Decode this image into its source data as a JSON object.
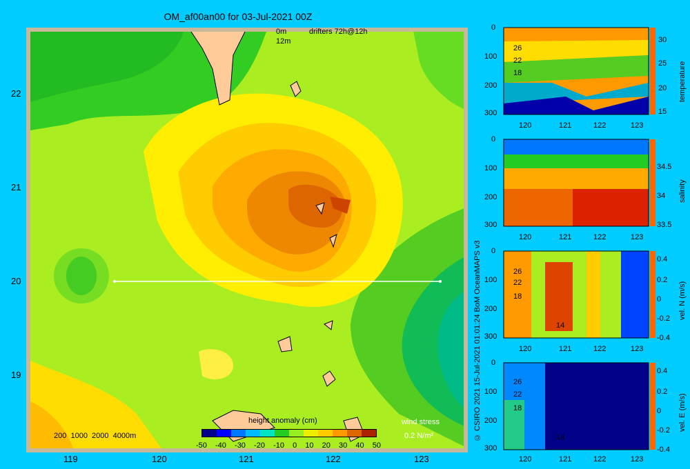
{
  "title": "OM_af00an00 for 03-Jul-2021 00Z",
  "legend": {
    "depth_0m": "0m",
    "depth_12m": "12m",
    "drifters": "drifters 72h@12h"
  },
  "map": {
    "x_ticks": [
      "119",
      "120",
      "121",
      "122",
      "123"
    ],
    "y_ticks": [
      "22",
      "21",
      "20",
      "19"
    ],
    "scale_labels": "200  1000  2000  4000m",
    "wind_stress_label": "wind stress",
    "wind_stress_value": "0.2 N/m²",
    "colorbar_title": "height anomaly (cm)",
    "colorbar_ticks": [
      "-50",
      "-40",
      "-30",
      "-20",
      "-10",
      "0",
      "10",
      "20",
      "30",
      "40",
      "50"
    ],
    "colorbar_colors": [
      "#00008b",
      "#0000ff",
      "#0077ff",
      "#00bbff",
      "#00e5c0",
      "#22cc22",
      "#99ee22",
      "#eeee00",
      "#ffcc00",
      "#ff9900",
      "#dd6600",
      "#aa2200"
    ]
  },
  "copyright": "© CSIRO 2021  15-Jul-2021 01:01:24  BoM OceanMAPS v3",
  "panels": [
    {
      "name": "temperature",
      "cb_ticks": [
        "30",
        "25",
        "20",
        "15"
      ],
      "depth_ticks": [
        "0",
        "100",
        "200",
        "300"
      ],
      "x_ticks": [
        "120",
        "121",
        "122",
        "123"
      ],
      "contour_labels": [
        "26",
        "22",
        "18"
      ]
    },
    {
      "name": "salinity",
      "cb_ticks": [
        "34.5",
        "34",
        "33.5"
      ],
      "depth_ticks": [
        "0",
        "100",
        "200",
        "300"
      ],
      "x_ticks": [
        "120",
        "121",
        "122",
        "123"
      ],
      "contour_labels": []
    },
    {
      "name": "vel. N (m/s)",
      "cb_ticks": [
        "0.4",
        "0.2",
        "0",
        "-0.2",
        "-0.4"
      ],
      "depth_ticks": [
        "0",
        "100",
        "200",
        "300"
      ],
      "x_ticks": [
        "120",
        "121",
        "122",
        "123"
      ],
      "contour_labels": [
        "26",
        "22",
        "18",
        "14"
      ]
    },
    {
      "name": "vel. E (m/s)",
      "cb_ticks": [
        "0.4",
        "0.2",
        "0",
        "-0.2",
        "-0.4"
      ],
      "depth_ticks": [
        "0",
        "100",
        "200",
        "300"
      ],
      "x_ticks": [
        "120",
        "121",
        "122",
        "123"
      ],
      "contour_labels": [
        "26",
        "22",
        "18",
        "14"
      ]
    }
  ]
}
